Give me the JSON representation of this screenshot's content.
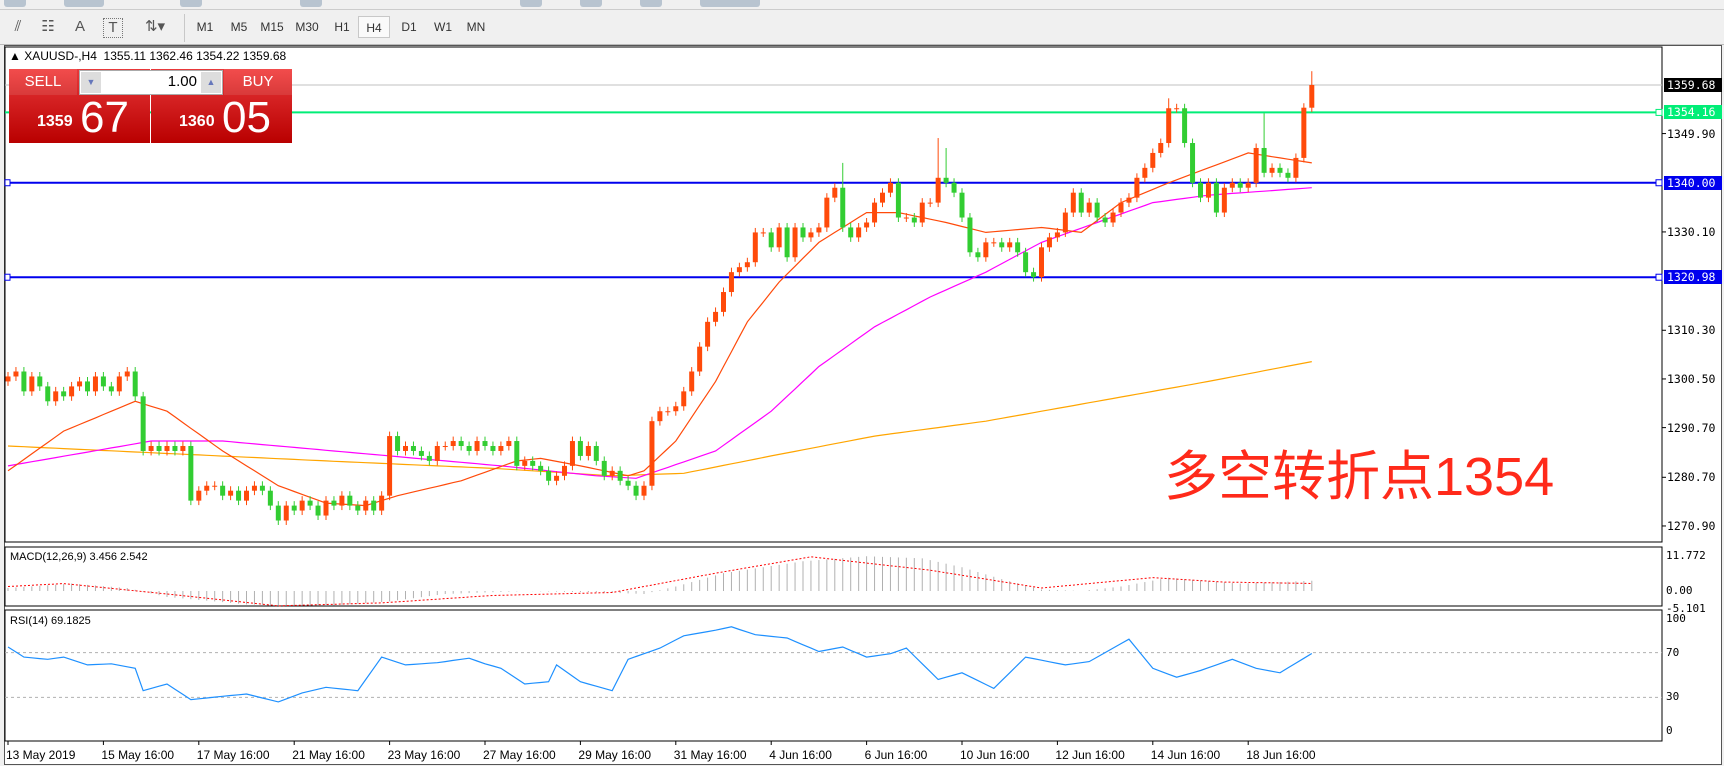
{
  "toolbar": {
    "tools": [
      {
        "name": "fibonacci-expansion-icon",
        "glyph": "⫽"
      },
      {
        "name": "fibonacci-fan-icon",
        "glyph": "☷"
      },
      {
        "name": "text-icon",
        "glyph": "A"
      },
      {
        "name": "text-label-icon",
        "glyph": "T"
      },
      {
        "name": "arrows-icon",
        "glyph": "⇅▾"
      }
    ],
    "timeframes": [
      "M1",
      "M5",
      "M15",
      "M30",
      "H1",
      "H4",
      "D1",
      "W1",
      "MN"
    ],
    "selected": "H4"
  },
  "chart": {
    "header": "▲ XAUUSD-,H4  1355.11 1362.46 1354.22 1359.68",
    "order_panel": {
      "sell_label": "SELL",
      "buy_label": "BUY",
      "lot": "1.00",
      "sell_small": "1359",
      "sell_big": "67",
      "buy_small": "1360",
      "buy_big": "05"
    },
    "annotation": "多空转折点1354",
    "colors": {
      "bull": "#ff4a0a",
      "bear": "#32cd32",
      "ma_fast": "#ff4a0a",
      "ma_mid": "#ff00ff",
      "ma_slow": "#ffa500",
      "level_green": "#00ee77",
      "level_blue": "#0000ee"
    }
  },
  "chart_data": {
    "type": "candlestick",
    "symbol": "XAUUSD-",
    "timeframe": "H4",
    "last_bar": {
      "open": 1355.11,
      "high": 1362.46,
      "low": 1354.22,
      "close": 1359.68
    },
    "close": [
      1301,
      1302,
      1298,
      1301,
      1299,
      1296,
      1298,
      1297,
      1299,
      1300,
      1298,
      1301,
      1299,
      1298,
      1301,
      1302,
      1297,
      1286,
      1287,
      1286,
      1287,
      1286,
      1287,
      1276,
      1278,
      1279,
      1279,
      1277,
      1278,
      1276,
      1278,
      1279,
      1278,
      1275,
      1272,
      1275,
      1274,
      1276,
      1275,
      1273,
      1276,
      1275,
      1277,
      1275,
      1274,
      1276,
      1274,
      1277,
      1289,
      1286,
      1287,
      1286,
      1285,
      1284,
      1287,
      1287,
      1288,
      1287,
      1286,
      1288,
      1287,
      1286,
      1287,
      1288,
      1283,
      1284,
      1283,
      1282,
      1280,
      1281,
      1283,
      1288,
      1285,
      1287,
      1284,
      1281,
      1282,
      1280,
      1279,
      1277,
      1279,
      1292,
      1294,
      1294,
      1295,
      1298,
      1302,
      1307,
      1312,
      1314,
      1318,
      1322,
      1323,
      1324,
      1330,
      1330,
      1327,
      1331,
      1325,
      1331,
      1329,
      1330,
      1331,
      1337,
      1339,
      1331,
      1329,
      1331,
      1332,
      1336,
      1338,
      1340,
      1333,
      1333,
      1332,
      1336,
      1336,
      1341,
      1340,
      1338,
      1333,
      1326,
      1325,
      1328,
      1328,
      1327,
      1328,
      1326,
      1322,
      1321,
      1327,
      1329,
      1330,
      1334,
      1338,
      1334,
      1336,
      1333,
      1332,
      1334,
      1336,
      1337,
      1341,
      1343,
      1346,
      1348,
      1355,
      1355,
      1348,
      1340,
      1337,
      1340,
      1334,
      1339,
      1340,
      1339,
      1340,
      1347,
      1342,
      1343,
      1342,
      1341,
      1345,
      1355.11,
      1359.68
    ],
    "notable_highs": {
      "105": 1344,
      "117": 1349,
      "118": 1347,
      "146": 1357,
      "158": 1354,
      "164": 1362.46
    },
    "ma_fast": [
      [
        0,
        1282
      ],
      [
        7,
        1290
      ],
      [
        16,
        1296
      ],
      [
        20,
        1294
      ],
      [
        27,
        1286
      ],
      [
        34,
        1279
      ],
      [
        40,
        1275.5
      ],
      [
        45,
        1275
      ],
      [
        49,
        1277
      ],
      [
        57,
        1280
      ],
      [
        64,
        1284
      ],
      [
        67,
        1284.5
      ],
      [
        72,
        1283
      ],
      [
        78,
        1281
      ],
      [
        80,
        1282
      ],
      [
        84,
        1288
      ],
      [
        89,
        1300
      ],
      [
        93,
        1312
      ],
      [
        97,
        1320
      ],
      [
        102,
        1328
      ],
      [
        108,
        1334
      ],
      [
        112,
        1334
      ],
      [
        118,
        1332
      ],
      [
        123,
        1330
      ],
      [
        130,
        1331
      ],
      [
        135,
        1330
      ],
      [
        140,
        1336
      ],
      [
        146,
        1340
      ],
      [
        151,
        1343
      ],
      [
        156,
        1346
      ],
      [
        164,
        1344
      ]
    ],
    "ma_mid": [
      [
        0,
        1283
      ],
      [
        18,
        1288
      ],
      [
        27,
        1288
      ],
      [
        62,
        1283
      ],
      [
        74,
        1281
      ],
      [
        79,
        1280.5
      ],
      [
        89,
        1286
      ],
      [
        96,
        1294
      ],
      [
        102,
        1303
      ],
      [
        109,
        1311
      ],
      [
        116,
        1317
      ],
      [
        123,
        1322
      ],
      [
        130,
        1328
      ],
      [
        137,
        1332
      ],
      [
        144,
        1336
      ],
      [
        151,
        1337.5
      ],
      [
        164,
        1339
      ]
    ],
    "ma_slow": [
      [
        0,
        1287
      ],
      [
        20,
        1285.5
      ],
      [
        40,
        1284
      ],
      [
        61,
        1282.5
      ],
      [
        76,
        1281
      ],
      [
        85,
        1281.5
      ],
      [
        96,
        1285
      ],
      [
        109,
        1289
      ],
      [
        123,
        1292
      ],
      [
        137,
        1296
      ],
      [
        151,
        1300
      ],
      [
        164,
        1304
      ]
    ],
    "levels": [
      {
        "price": 1354.16,
        "label": "1354.16",
        "color": "green"
      },
      {
        "price": 1340.0,
        "label": "1340.00",
        "color": "blue"
      },
      {
        "price": 1320.98,
        "label": "1320.98",
        "color": "blue"
      }
    ],
    "current_price": "1359.68",
    "price_ticks": [
      "1349.90",
      "1330.10",
      "1310.30",
      "1300.50",
      "1290.70",
      "1280.70",
      "1270.90"
    ],
    "date_ticks": [
      "13 May 2019",
      "15 May 16:00",
      "17 May 16:00",
      "21 May 16:00",
      "23 May 16:00",
      "27 May 16:00",
      "29 May 16:00",
      "31 May 16:00",
      "4 Jun 16:00",
      "6 Jun 16:00",
      "10 Jun 16:00",
      "12 Jun 16:00",
      "14 Jun 16:00",
      "18 Jun 16:00"
    ],
    "macd": {
      "label": "MACD(12,26,9) 3.456 2.542",
      "ticks": [
        "11.772",
        "0.00",
        "-5.101"
      ],
      "main": [
        [
          0,
          1
        ],
        [
          8,
          2.5
        ],
        [
          15,
          1
        ],
        [
          20,
          -2
        ],
        [
          30,
          -4.5
        ],
        [
          40,
          -5
        ],
        [
          48,
          -3.5
        ],
        [
          55,
          -1
        ],
        [
          65,
          0
        ],
        [
          75,
          -0.5
        ],
        [
          80,
          -1
        ],
        [
          84,
          1.5
        ],
        [
          90,
          6
        ],
        [
          100,
          10
        ],
        [
          108,
          11.7
        ],
        [
          115,
          11
        ],
        [
          120,
          8
        ],
        [
          125,
          4
        ],
        [
          130,
          0.5
        ],
        [
          135,
          0
        ],
        [
          140,
          1.5
        ],
        [
          146,
          4.5
        ],
        [
          150,
          3.5
        ],
        [
          155,
          2.5
        ],
        [
          164,
          3.456
        ]
      ],
      "signal": [
        [
          0,
          1.5
        ],
        [
          7,
          2.5
        ],
        [
          20,
          -1
        ],
        [
          34,
          -5
        ],
        [
          47,
          -4
        ],
        [
          61,
          -1.5
        ],
        [
          76,
          -0.5
        ],
        [
          89,
          6
        ],
        [
          101,
          11.5
        ],
        [
          116,
          7
        ],
        [
          130,
          1
        ],
        [
          144,
          4.5
        ],
        [
          153,
          3
        ],
        [
          164,
          2.542
        ]
      ]
    },
    "rsi": {
      "label": "RSI(14) 69.1825",
      "ticks": [
        "100",
        "70",
        "30",
        "0"
      ],
      "values": [
        [
          0,
          75
        ],
        [
          2,
          66
        ],
        [
          5,
          64
        ],
        [
          7,
          66
        ],
        [
          10,
          59
        ],
        [
          13,
          60
        ],
        [
          16,
          56
        ],
        [
          17,
          36
        ],
        [
          20,
          42
        ],
        [
          23,
          28
        ],
        [
          27,
          31
        ],
        [
          30,
          33
        ],
        [
          34,
          26
        ],
        [
          37,
          34
        ],
        [
          40,
          39
        ],
        [
          44,
          36
        ],
        [
          47,
          66
        ],
        [
          50,
          59
        ],
        [
          54,
          61
        ],
        [
          58,
          65
        ],
        [
          60,
          60
        ],
        [
          62,
          56
        ],
        [
          65,
          42
        ],
        [
          68,
          44
        ],
        [
          69,
          59
        ],
        [
          72,
          44
        ],
        [
          76,
          36
        ],
        [
          78,
          64
        ],
        [
          82,
          74
        ],
        [
          85,
          85
        ],
        [
          89,
          90
        ],
        [
          91,
          93
        ],
        [
          94,
          86
        ],
        [
          98,
          83
        ],
        [
          102,
          71
        ],
        [
          105,
          75
        ],
        [
          108,
          66
        ],
        [
          111,
          69
        ],
        [
          113,
          74
        ],
        [
          117,
          46
        ],
        [
          120,
          52
        ],
        [
          124,
          38
        ],
        [
          128,
          66
        ],
        [
          133,
          59
        ],
        [
          136,
          62
        ],
        [
          139,
          74
        ],
        [
          141,
          82
        ],
        [
          144,
          56
        ],
        [
          147,
          48
        ],
        [
          150,
          54
        ],
        [
          154,
          64
        ],
        [
          157,
          56
        ],
        [
          160,
          52
        ],
        [
          164,
          69.18
        ]
      ]
    }
  }
}
